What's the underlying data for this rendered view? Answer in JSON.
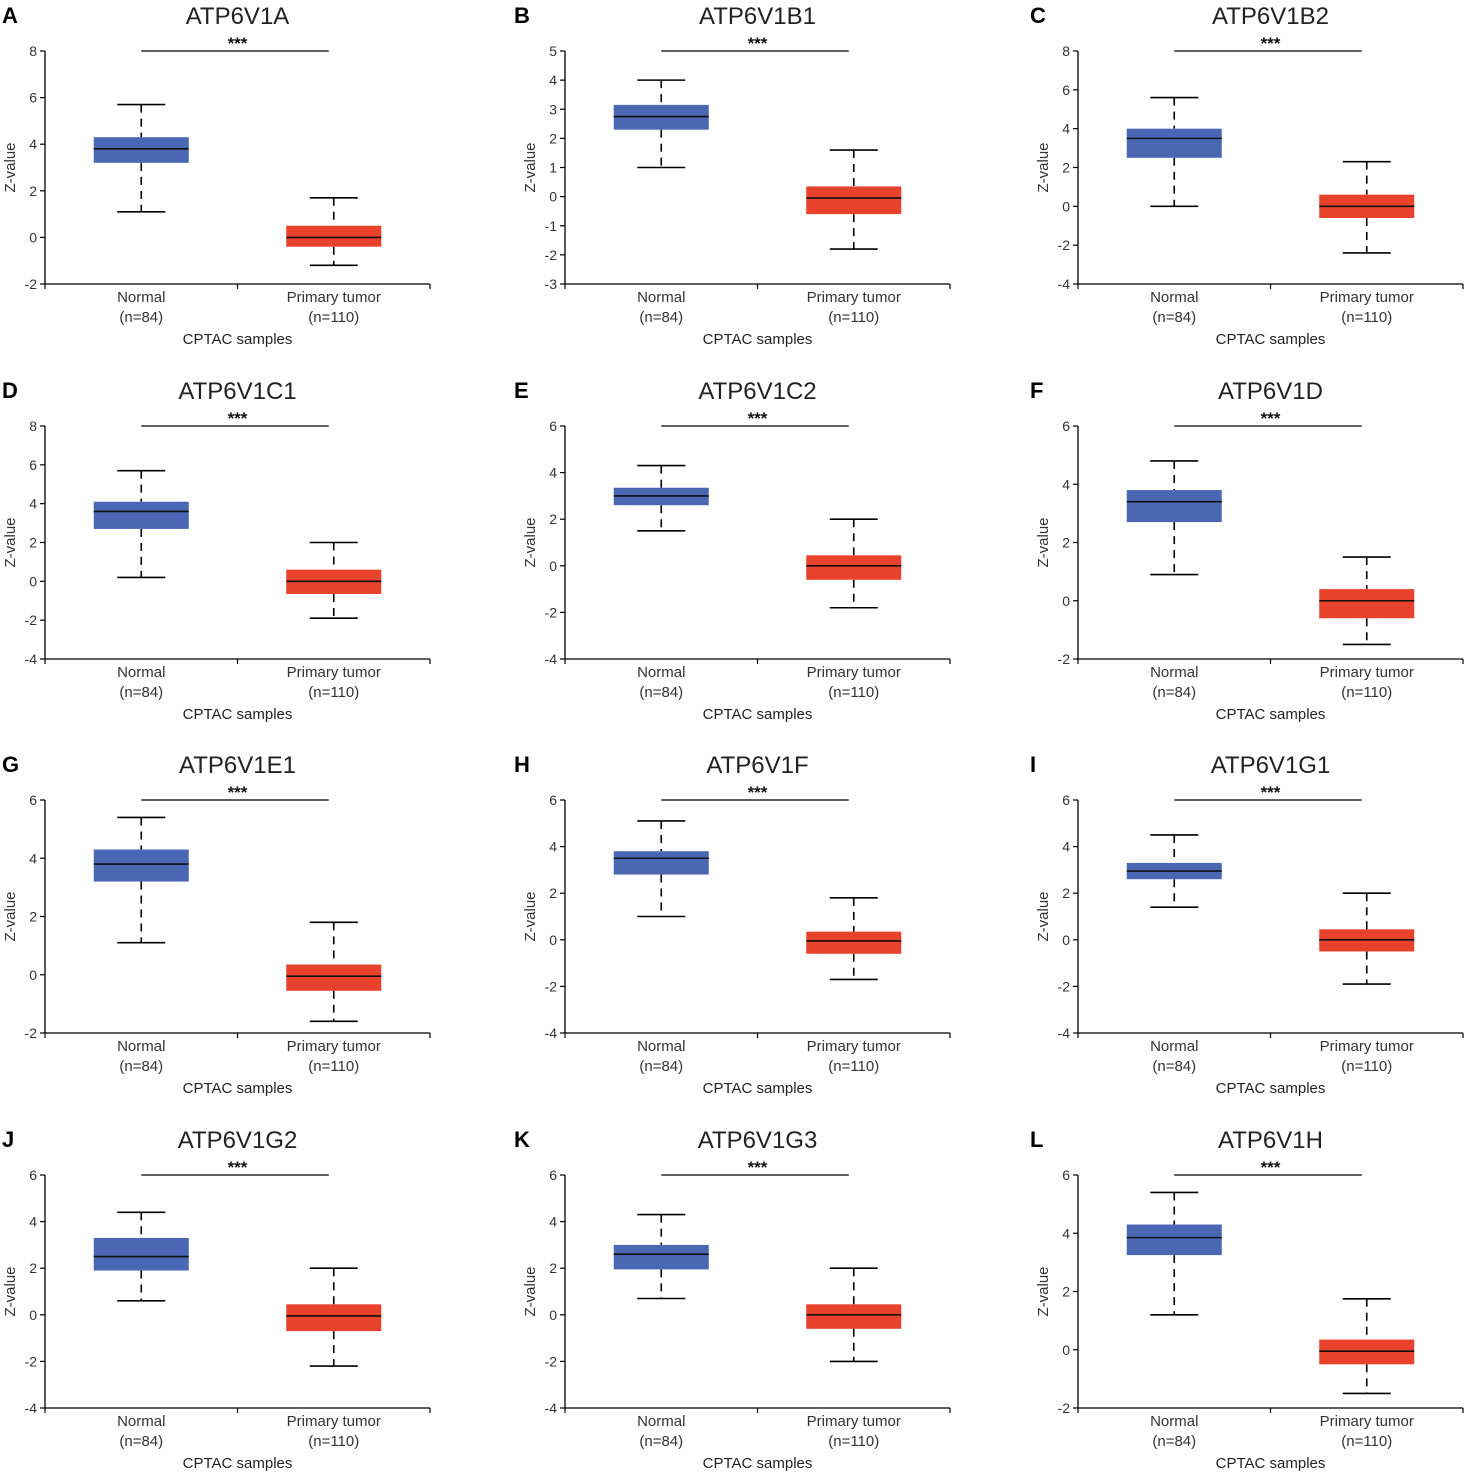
{
  "colors": {
    "normal": "#4a67b4",
    "tumor": "#e8412c",
    "axis": "#000000"
  },
  "chart_data": [
    {
      "panel": "A",
      "type": "box",
      "title": "ATP6V1A",
      "ylabel": "Z-value",
      "xlabel": "CPTAC samples",
      "ylim": [
        -2,
        8
      ],
      "yticks": [
        -2,
        0,
        2,
        4,
        6,
        8
      ],
      "significance": "***",
      "categories": [
        "Normal",
        "Primary tumor"
      ],
      "n_labels": [
        "(n=84)",
        "(n=110)"
      ],
      "boxes": [
        {
          "name": "Normal",
          "min": 1.1,
          "q1": 3.2,
          "median": 3.8,
          "q3": 4.3,
          "max": 5.7
        },
        {
          "name": "Primary tumor",
          "min": -1.2,
          "q1": -0.4,
          "median": 0.0,
          "q3": 0.5,
          "max": 1.7
        }
      ]
    },
    {
      "panel": "B",
      "type": "box",
      "title": "ATP6V1B1",
      "ylabel": "Z-value",
      "xlabel": "CPTAC samples",
      "ylim": [
        -3,
        5
      ],
      "yticks": [
        -3,
        -2,
        -1,
        0,
        1,
        2,
        3,
        4,
        5
      ],
      "significance": "***",
      "categories": [
        "Normal",
        "Primary tumor"
      ],
      "n_labels": [
        "(n=84)",
        "(n=110)"
      ],
      "boxes": [
        {
          "name": "Normal",
          "min": 1.0,
          "q1": 2.3,
          "median": 2.75,
          "q3": 3.15,
          "max": 4.0
        },
        {
          "name": "Primary tumor",
          "min": -1.8,
          "q1": -0.6,
          "median": -0.05,
          "q3": 0.35,
          "max": 1.6
        }
      ]
    },
    {
      "panel": "C",
      "type": "box",
      "title": "ATP6V1B2",
      "ylabel": "Z-value",
      "xlabel": "CPTAC samples",
      "ylim": [
        -4,
        8
      ],
      "yticks": [
        -4,
        -2,
        0,
        2,
        4,
        6,
        8
      ],
      "significance": "***",
      "categories": [
        "Normal",
        "Primary tumor"
      ],
      "n_labels": [
        "(n=84)",
        "(n=110)"
      ],
      "boxes": [
        {
          "name": "Normal",
          "min": 0.0,
          "q1": 2.5,
          "median": 3.5,
          "q3": 4.0,
          "max": 5.6
        },
        {
          "name": "Primary tumor",
          "min": -2.4,
          "q1": -0.6,
          "median": 0.0,
          "q3": 0.6,
          "max": 2.3
        }
      ]
    },
    {
      "panel": "D",
      "type": "box",
      "title": "ATP6V1C1",
      "ylabel": "Z-value",
      "xlabel": "CPTAC samples",
      "ylim": [
        -4,
        8
      ],
      "yticks": [
        -4,
        -2,
        0,
        2,
        4,
        6,
        8
      ],
      "significance": "***",
      "categories": [
        "Normal",
        "Primary tumor"
      ],
      "n_labels": [
        "(n=84)",
        "(n=110)"
      ],
      "boxes": [
        {
          "name": "Normal",
          "min": 0.2,
          "q1": 2.7,
          "median": 3.6,
          "q3": 4.1,
          "max": 5.7
        },
        {
          "name": "Primary tumor",
          "min": -1.9,
          "q1": -0.65,
          "median": 0.0,
          "q3": 0.6,
          "max": 2.0
        }
      ]
    },
    {
      "panel": "E",
      "type": "box",
      "title": "ATP6V1C2",
      "ylabel": "Z-value",
      "xlabel": "CPTAC samples",
      "ylim": [
        -4,
        6
      ],
      "yticks": [
        -4,
        -2,
        0,
        2,
        4,
        6
      ],
      "significance": "***",
      "categories": [
        "Normal",
        "Primary tumor"
      ],
      "n_labels": [
        "(n=84)",
        "(n=110)"
      ],
      "boxes": [
        {
          "name": "Normal",
          "min": 1.5,
          "q1": 2.6,
          "median": 3.0,
          "q3": 3.35,
          "max": 4.3
        },
        {
          "name": "Primary tumor",
          "min": -1.8,
          "q1": -0.6,
          "median": 0.0,
          "q3": 0.45,
          "max": 2.0
        }
      ]
    },
    {
      "panel": "F",
      "type": "box",
      "title": "ATP6V1D",
      "ylabel": "Z-value",
      "xlabel": "CPTAC samples",
      "ylim": [
        -2,
        6
      ],
      "yticks": [
        -2,
        0,
        2,
        4,
        6
      ],
      "significance": "***",
      "categories": [
        "Normal",
        "Primary tumor"
      ],
      "n_labels": [
        "(n=84)",
        "(n=110)"
      ],
      "boxes": [
        {
          "name": "Normal",
          "min": 0.9,
          "q1": 2.7,
          "median": 3.4,
          "q3": 3.8,
          "max": 4.8
        },
        {
          "name": "Primary tumor",
          "min": -1.5,
          "q1": -0.6,
          "median": 0.0,
          "q3": 0.4,
          "max": 1.5
        }
      ]
    },
    {
      "panel": "G",
      "type": "box",
      "title": "ATP6V1E1",
      "ylabel": "Z-value",
      "xlabel": "CPTAC samples",
      "ylim": [
        -2,
        6
      ],
      "yticks": [
        -2,
        0,
        2,
        4,
        6
      ],
      "significance": "***",
      "categories": [
        "Normal",
        "Primary tumor"
      ],
      "n_labels": [
        "(n=84)",
        "(n=110)"
      ],
      "boxes": [
        {
          "name": "Normal",
          "min": 1.1,
          "q1": 3.2,
          "median": 3.8,
          "q3": 4.3,
          "max": 5.4
        },
        {
          "name": "Primary tumor",
          "min": -1.6,
          "q1": -0.55,
          "median": -0.05,
          "q3": 0.35,
          "max": 1.8
        }
      ]
    },
    {
      "panel": "H",
      "type": "box",
      "title": "ATP6V1F",
      "ylabel": "Z-value",
      "xlabel": "CPTAC samples",
      "ylim": [
        -4,
        6
      ],
      "yticks": [
        -4,
        -2,
        0,
        2,
        4,
        6
      ],
      "significance": "***",
      "categories": [
        "Normal",
        "Primary tumor"
      ],
      "n_labels": [
        "(n=84)",
        "(n=110)"
      ],
      "boxes": [
        {
          "name": "Normal",
          "min": 1.0,
          "q1": 2.8,
          "median": 3.5,
          "q3": 3.8,
          "max": 5.1
        },
        {
          "name": "Primary tumor",
          "min": -1.7,
          "q1": -0.6,
          "median": -0.05,
          "q3": 0.35,
          "max": 1.8
        }
      ]
    },
    {
      "panel": "I",
      "type": "box",
      "title": "ATP6V1G1",
      "ylabel": "Z-value",
      "xlabel": "CPTAC samples",
      "ylim": [
        -4,
        6
      ],
      "yticks": [
        -4,
        -2,
        0,
        2,
        4,
        6
      ],
      "significance": "***",
      "categories": [
        "Normal",
        "Primary tumor"
      ],
      "n_labels": [
        "(n=84)",
        "(n=110)"
      ],
      "boxes": [
        {
          "name": "Normal",
          "min": 1.4,
          "q1": 2.6,
          "median": 2.95,
          "q3": 3.3,
          "max": 4.5
        },
        {
          "name": "Primary tumor",
          "min": -1.9,
          "q1": -0.5,
          "median": 0.0,
          "q3": 0.45,
          "max": 2.0
        }
      ]
    },
    {
      "panel": "J",
      "type": "box",
      "title": "ATP6V1G2",
      "ylabel": "Z-value",
      "xlabel": "CPTAC samples",
      "ylim": [
        -4,
        6
      ],
      "yticks": [
        -4,
        -2,
        0,
        2,
        4,
        6
      ],
      "significance": "***",
      "categories": [
        "Normal",
        "Primary tumor"
      ],
      "n_labels": [
        "(n=84)",
        "(n=110)"
      ],
      "boxes": [
        {
          "name": "Normal",
          "min": 0.6,
          "q1": 1.9,
          "median": 2.5,
          "q3": 3.3,
          "max": 4.4
        },
        {
          "name": "Primary tumor",
          "min": -2.2,
          "q1": -0.7,
          "median": -0.05,
          "q3": 0.45,
          "max": 2.0
        }
      ]
    },
    {
      "panel": "K",
      "type": "box",
      "title": "ATP6V1G3",
      "ylabel": "Z-value",
      "xlabel": "CPTAC samples",
      "ylim": [
        -4,
        6
      ],
      "yticks": [
        -4,
        -2,
        0,
        2,
        4,
        6
      ],
      "significance": "***",
      "categories": [
        "Normal",
        "Primary tumor"
      ],
      "n_labels": [
        "(n=84)",
        "(n=110)"
      ],
      "boxes": [
        {
          "name": "Normal",
          "min": 0.7,
          "q1": 1.95,
          "median": 2.6,
          "q3": 3.0,
          "max": 4.3
        },
        {
          "name": "Primary tumor",
          "min": -2.0,
          "q1": -0.6,
          "median": 0.0,
          "q3": 0.45,
          "max": 2.0
        }
      ]
    },
    {
      "panel": "L",
      "type": "box",
      "title": "ATP6V1H",
      "ylabel": "Z-value",
      "xlabel": "CPTAC samples",
      "ylim": [
        -2,
        6
      ],
      "yticks": [
        -2,
        0,
        2,
        4,
        6
      ],
      "significance": "***",
      "categories": [
        "Normal",
        "Primary tumor"
      ],
      "n_labels": [
        "(n=84)",
        "(n=110)"
      ],
      "boxes": [
        {
          "name": "Normal",
          "min": 1.2,
          "q1": 3.25,
          "median": 3.85,
          "q3": 4.3,
          "max": 5.4
        },
        {
          "name": "Primary tumor",
          "min": -1.5,
          "q1": -0.5,
          "median": -0.05,
          "q3": 0.35,
          "max": 1.75
        }
      ]
    }
  ]
}
